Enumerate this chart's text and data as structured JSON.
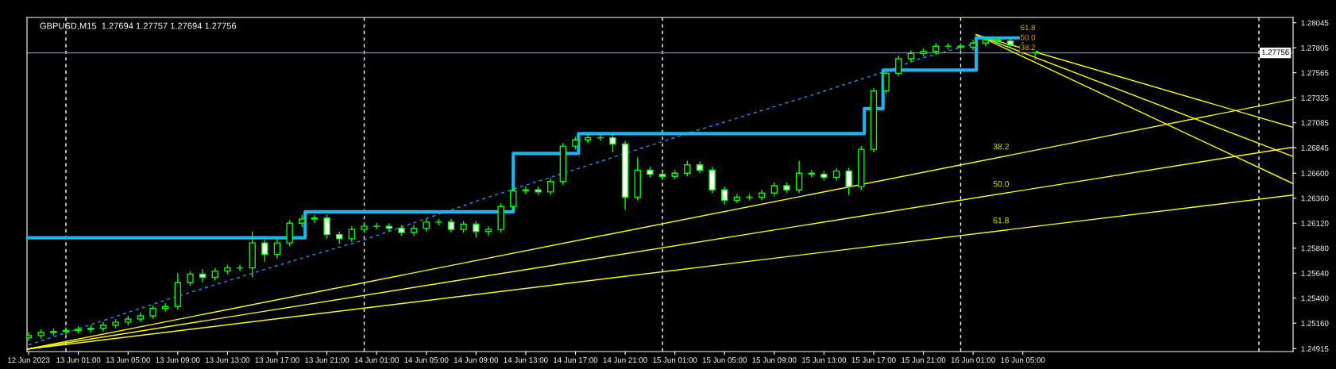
{
  "chart_data": {
    "type": "candlestick",
    "title": "GBPUSD,M15  1.27694 1.27757 1.27694 1.27756",
    "x": [
      "2023-06-12T21:00",
      "2023-06-12T22:00",
      "2023-06-12T23:00",
      "2023-06-13T00:00",
      "2023-06-13T01:00",
      "2023-06-13T02:00",
      "2023-06-13T03:00",
      "2023-06-13T04:00",
      "2023-06-13T05:00",
      "2023-06-13T06:00",
      "2023-06-13T07:00",
      "2023-06-13T08:00",
      "2023-06-13T09:00",
      "2023-06-13T10:00",
      "2023-06-13T11:00",
      "2023-06-13T12:00",
      "2023-06-13T13:00",
      "2023-06-13T14:00",
      "2023-06-13T15:00",
      "2023-06-13T16:00",
      "2023-06-13T17:00",
      "2023-06-13T18:00",
      "2023-06-13T19:00",
      "2023-06-13T20:00",
      "2023-06-13T21:00",
      "2023-06-13T22:00",
      "2023-06-13T23:00",
      "2023-06-14T00:00",
      "2023-06-14T01:00",
      "2023-06-14T02:00",
      "2023-06-14T03:00",
      "2023-06-14T04:00",
      "2023-06-14T05:00",
      "2023-06-14T06:00",
      "2023-06-14T07:00",
      "2023-06-14T08:00",
      "2023-06-14T09:00",
      "2023-06-14T10:00",
      "2023-06-14T11:00",
      "2023-06-14T12:00",
      "2023-06-14T13:00",
      "2023-06-14T14:00",
      "2023-06-14T15:00",
      "2023-06-14T16:00",
      "2023-06-14T17:00",
      "2023-06-14T18:00",
      "2023-06-14T19:00",
      "2023-06-14T20:00",
      "2023-06-14T21:00",
      "2023-06-14T22:00",
      "2023-06-14T23:00",
      "2023-06-15T00:00",
      "2023-06-15T01:00",
      "2023-06-15T02:00",
      "2023-06-15T03:00",
      "2023-06-15T04:00",
      "2023-06-15T05:00",
      "2023-06-15T06:00",
      "2023-06-15T07:00",
      "2023-06-15T08:00",
      "2023-06-15T09:00",
      "2023-06-15T10:00",
      "2023-06-15T11:00",
      "2023-06-15T12:00",
      "2023-06-15T13:00",
      "2023-06-15T14:00",
      "2023-06-15T15:00",
      "2023-06-15T16:00",
      "2023-06-15T17:00",
      "2023-06-15T18:00",
      "2023-06-15T19:00",
      "2023-06-15T20:00",
      "2023-06-15T21:00",
      "2023-06-15T22:00",
      "2023-06-15T23:00",
      "2023-06-16T00:00",
      "2023-06-16T01:00",
      "2023-06-16T02:00",
      "2023-06-16T03:00",
      "2023-06-16T04:00",
      "2023-06-16T05:00",
      "2023-06-16T06:00"
    ],
    "ohlc": [
      [
        1.2502,
        1.2507,
        1.2499,
        1.2504
      ],
      [
        1.2504,
        1.251,
        1.2501,
        1.2507
      ],
      [
        1.2507,
        1.2511,
        1.2504,
        1.2508
      ],
      [
        1.2508,
        1.2512,
        1.2505,
        1.2509
      ],
      [
        1.2509,
        1.2513,
        1.2506,
        1.251
      ],
      [
        1.251,
        1.2514,
        1.2507,
        1.2511
      ],
      [
        1.2511,
        1.2517,
        1.2508,
        1.2514
      ],
      [
        1.2514,
        1.252,
        1.2511,
        1.2517
      ],
      [
        1.2517,
        1.2523,
        1.2514,
        1.252
      ],
      [
        1.252,
        1.2526,
        1.2517,
        1.2523
      ],
      [
        1.2523,
        1.2533,
        1.252,
        1.253
      ],
      [
        1.253,
        1.2535,
        1.2527,
        1.2532
      ],
      [
        1.2532,
        1.2564,
        1.2529,
        1.2555
      ],
      [
        1.2555,
        1.2566,
        1.2552,
        1.2563
      ],
      [
        1.2563,
        1.2568,
        1.2555,
        1.256
      ],
      [
        1.256,
        1.2569,
        1.2557,
        1.2566
      ],
      [
        1.2566,
        1.2572,
        1.2563,
        1.2569
      ],
      [
        1.2569,
        1.2572,
        1.2566,
        1.2569
      ],
      [
        1.2569,
        1.2604,
        1.256,
        1.2593
      ],
      [
        1.2593,
        1.2596,
        1.2575,
        1.2582
      ],
      [
        1.2582,
        1.2598,
        1.2578,
        1.2593
      ],
      [
        1.2593,
        1.2615,
        1.259,
        1.2612
      ],
      [
        1.2612,
        1.262,
        1.2608,
        1.2616
      ],
      [
        1.2616,
        1.262,
        1.2612,
        1.2617
      ],
      [
        1.2617,
        1.262,
        1.2597,
        1.2601
      ],
      [
        1.2601,
        1.2604,
        1.2592,
        1.2597
      ],
      [
        1.2597,
        1.2609,
        1.2594,
        1.2606
      ],
      [
        1.2606,
        1.2612,
        1.2603,
        1.2609
      ],
      [
        1.2609,
        1.2612,
        1.2606,
        1.2609
      ],
      [
        1.2609,
        1.2612,
        1.2604,
        1.2607
      ],
      [
        1.2607,
        1.261,
        1.26,
        1.2603
      ],
      [
        1.2603,
        1.261,
        1.26,
        1.2607
      ],
      [
        1.2607,
        1.2616,
        1.2604,
        1.2613
      ],
      [
        1.2613,
        1.2616,
        1.261,
        1.2613
      ],
      [
        1.2613,
        1.2616,
        1.2603,
        1.2606
      ],
      [
        1.2606,
        1.2614,
        1.2603,
        1.2611
      ],
      [
        1.2611,
        1.2614,
        1.2598,
        1.2604
      ],
      [
        1.2604,
        1.2609,
        1.26,
        1.2606
      ],
      [
        1.2606,
        1.2631,
        1.2603,
        1.2628
      ],
      [
        1.2628,
        1.2646,
        1.2625,
        1.2643
      ],
      [
        1.2643,
        1.2647,
        1.264,
        1.2644
      ],
      [
        1.2644,
        1.2647,
        1.2639,
        1.2642
      ],
      [
        1.2642,
        1.2655,
        1.2639,
        1.2652
      ],
      [
        1.2652,
        1.2689,
        1.2649,
        1.2686
      ],
      [
        1.2686,
        1.2695,
        1.2683,
        1.2692
      ],
      [
        1.2692,
        1.2697,
        1.2689,
        1.2694
      ],
      [
        1.2694,
        1.2697,
        1.2691,
        1.2694
      ],
      [
        1.2694,
        1.2697,
        1.268,
        1.2688
      ],
      [
        1.2688,
        1.2691,
        1.2625,
        1.2637
      ],
      [
        1.2637,
        1.2675,
        1.2634,
        1.2663
      ],
      [
        1.2663,
        1.2666,
        1.2656,
        1.2659
      ],
      [
        1.2659,
        1.2662,
        1.2654,
        1.2657
      ],
      [
        1.2657,
        1.2663,
        1.2654,
        1.266
      ],
      [
        1.266,
        1.2672,
        1.2657,
        1.2668
      ],
      [
        1.2668,
        1.2671,
        1.266,
        1.2663
      ],
      [
        1.2663,
        1.2666,
        1.2641,
        1.2644
      ],
      [
        1.2644,
        1.2647,
        1.263,
        1.2634
      ],
      [
        1.2634,
        1.264,
        1.2631,
        1.2637
      ],
      [
        1.2637,
        1.264,
        1.2634,
        1.2637
      ],
      [
        1.2637,
        1.2644,
        1.2634,
        1.2641
      ],
      [
        1.2641,
        1.2651,
        1.2638,
        1.2648
      ],
      [
        1.2648,
        1.2651,
        1.2641,
        1.2644
      ],
      [
        1.2644,
        1.2672,
        1.2641,
        1.266
      ],
      [
        1.266,
        1.2663,
        1.2656,
        1.2659
      ],
      [
        1.2659,
        1.2662,
        1.2653,
        1.2656
      ],
      [
        1.2656,
        1.2665,
        1.2653,
        1.2662
      ],
      [
        1.2662,
        1.2665,
        1.2639,
        1.2647
      ],
      [
        1.2647,
        1.2686,
        1.2644,
        1.2683
      ],
      [
        1.2683,
        1.2742,
        1.268,
        1.2739
      ],
      [
        1.2739,
        1.2759,
        1.2736,
        1.2756
      ],
      [
        1.2756,
        1.2773,
        1.2753,
        1.277
      ],
      [
        1.277,
        1.2778,
        1.2767,
        1.2775
      ],
      [
        1.2775,
        1.278,
        1.2772,
        1.2777
      ],
      [
        1.2777,
        1.2785,
        1.2774,
        1.2782
      ],
      [
        1.2782,
        1.2785,
        1.2779,
        1.2782
      ],
      [
        1.2782,
        1.2785,
        1.2778,
        1.2781
      ],
      [
        1.2781,
        1.2788,
        1.2778,
        1.2785
      ],
      [
        1.2785,
        1.2791,
        1.2782,
        1.2788
      ],
      [
        1.2788,
        1.2791,
        1.2784,
        1.2787
      ],
      [
        1.2787,
        1.279,
        1.278,
        1.2783
      ],
      [
        1.2783,
        1.2786,
        1.2774,
        1.2777
      ],
      [
        1.2777,
        1.278,
        1.2769,
        1.27756
      ]
    ],
    "series": [
      {
        "type": "step",
        "color": "#1eb4f0",
        "line_style": "solid",
        "x": [
          "2023-06-12T21:00",
          "2023-06-13T19:15",
          "2023-06-14T12:00",
          "2023-06-14T17:15",
          "2023-06-15T16:15",
          "2023-06-15T17:45",
          "2023-06-16T01:15",
          "2023-06-16T04:45"
        ],
        "values": [
          1.2598,
          1.2623,
          1.2679,
          1.2698,
          1.2722,
          1.2759,
          1.279,
          1.279
        ]
      },
      {
        "type": "line",
        "color": "#1e90ff",
        "line_style": "dashed",
        "x": [
          "2023-06-12T21:00",
          "2023-06-13T08:30",
          "2023-06-13T17:45",
          "2023-06-14T00:00",
          "2023-06-14T10:00",
          "2023-06-14T20:30",
          "2023-06-15T02:30",
          "2023-06-15T08:45",
          "2023-06-15T11:45",
          "2023-06-15T18:15",
          "2023-06-15T20:45",
          "2023-06-16T01:15"
        ],
        "values": [
          1.2495,
          1.254,
          1.2574,
          1.2596,
          1.2637,
          1.2677,
          1.27,
          1.2723,
          1.2734,
          1.2759,
          1.277,
          1.2785
        ]
      },
      {
        "type": "line",
        "color": "#ffff00",
        "line_style": "solid",
        "x": [
          "2023-06-12T20:52",
          "2023-06-17T02:45"
        ],
        "values": [
          1.2491,
          1.2731
        ]
      },
      {
        "type": "line",
        "color": "#ffff00",
        "line_style": "solid",
        "x": [
          "2023-06-12T20:52",
          "2023-06-17T02:45"
        ],
        "values": [
          1.2491,
          1.2685
        ]
      },
      {
        "type": "line",
        "color": "#ffff00",
        "line_style": "solid",
        "x": [
          "2023-06-12T20:52",
          "2023-06-17T02:45"
        ],
        "values": [
          1.2491,
          1.2639
        ]
      },
      {
        "type": "line",
        "color": "#ffff00",
        "line_style": "solid",
        "x": [
          "2023-06-16T01:15",
          "2023-06-17T02:45"
        ],
        "values": [
          1.2793,
          1.2704
        ]
      },
      {
        "type": "line",
        "color": "#ffff00",
        "line_style": "solid",
        "x": [
          "2023-06-16T01:15",
          "2023-06-17T02:45"
        ],
        "values": [
          1.2793,
          1.2676
        ]
      },
      {
        "type": "line",
        "color": "#ffff00",
        "line_style": "solid",
        "x": [
          "2023-06-16T01:15",
          "2023-06-17T02:45"
        ],
        "values": [
          1.2793,
          1.265
        ]
      }
    ],
    "annotations": [
      {
        "text": "38.2",
        "x": "2023-06-16T03:15",
        "y": 1.2676
      },
      {
        "text": "50.0",
        "x": "2023-06-16T03:15",
        "y": 1.264
      },
      {
        "text": "61.8",
        "x": "2023-06-16T03:15",
        "y": 1.2605
      },
      "61.8",
      "50.0",
      "38.2"
    ],
    "ref_lines": [
      {
        "axis": "x",
        "value": "2023-06-13T00:00",
        "color": "#ffffff",
        "line_style": "dashed"
      },
      {
        "axis": "x",
        "value": "2023-06-14T00:00",
        "color": "#ffffff",
        "line_style": "dashed"
      },
      {
        "axis": "x",
        "value": "2023-06-15T00:00",
        "color": "#ffffff",
        "line_style": "dashed"
      },
      {
        "axis": "x",
        "value": "2023-06-16T00:00",
        "color": "#ffffff",
        "line_style": "dashed"
      },
      {
        "axis": "x",
        "value": "2023-06-17T00:00",
        "color": "#ffffff",
        "line_style": "dashed"
      },
      {
        "axis": "y",
        "value": 1.27756,
        "label": "1.27756",
        "color": "#778899",
        "line_style": "solid"
      }
    ],
    "xlim": [
      "2023-06-12T20:52",
      "2023-06-17T02:45"
    ],
    "xticks": [
      {
        "value": "2023-06-12T21:00",
        "label": "12 Jun 2023"
      },
      {
        "value": "2023-06-13T01:00",
        "label": "13 Jun 01:00"
      },
      {
        "value": "2023-06-13T05:00",
        "label": "13 Jun 05:00"
      },
      {
        "value": "2023-06-13T09:00",
        "label": "13 Jun 09:00"
      },
      {
        "value": "2023-06-13T13:00",
        "label": "13 Jun 13:00"
      },
      {
        "value": "2023-06-13T17:00",
        "label": "13 Jun 17:00"
      },
      {
        "value": "2023-06-13T21:00",
        "label": "13 Jun 21:00"
      },
      {
        "value": "2023-06-14T01:00",
        "label": "14 Jun 01:00"
      },
      {
        "value": "2023-06-14T05:00",
        "label": "14 Jun 05:00"
      },
      {
        "value": "2023-06-14T09:00",
        "label": "14 Jun 09:00"
      },
      {
        "value": "2023-06-14T13:00",
        "label": "14 Jun 13:00"
      },
      {
        "value": "2023-06-14T17:00",
        "label": "14 Jun 17:00"
      },
      {
        "value": "2023-06-14T21:00",
        "label": "14 Jun 21:00"
      },
      {
        "value": "2023-06-15T01:00",
        "label": "15 Jun 01:00"
      },
      {
        "value": "2023-06-15T05:00",
        "label": "15 Jun 05:00"
      },
      {
        "value": "2023-06-15T09:00",
        "label": "15 Jun 09:00"
      },
      {
        "value": "2023-06-15T13:00",
        "label": "15 Jun 13:00"
      },
      {
        "value": "2023-06-15T17:00",
        "label": "15 Jun 17:00"
      },
      {
        "value": "2023-06-15T21:00",
        "label": "15 Jun 21:00"
      },
      {
        "value": "2023-06-16T01:00",
        "label": "16 Jun 01:00"
      },
      {
        "value": "2023-06-16T05:00",
        "label": "16 Jun 05:00"
      }
    ],
    "ylim": [
      1.24887,
      1.28096
    ],
    "yticks": [
      1.28045,
      1.27805,
      1.27565,
      1.27325,
      1.27085,
      1.26845,
      {
        "value": 1.266,
        "label": "1.26600"
      },
      {
        "value": 1.2636,
        "label": "1.26360"
      },
      {
        "value": 1.2612,
        "label": "1.26120"
      },
      {
        "value": 1.2588,
        "label": "1.25880"
      },
      {
        "value": 1.2564,
        "label": "1.25640"
      },
      {
        "value": 1.254,
        "label": "1.25400"
      },
      {
        "value": 1.2516,
        "label": "1.25160"
      },
      1.24915
    ],
    "grid": false,
    "legend": false
  }
}
